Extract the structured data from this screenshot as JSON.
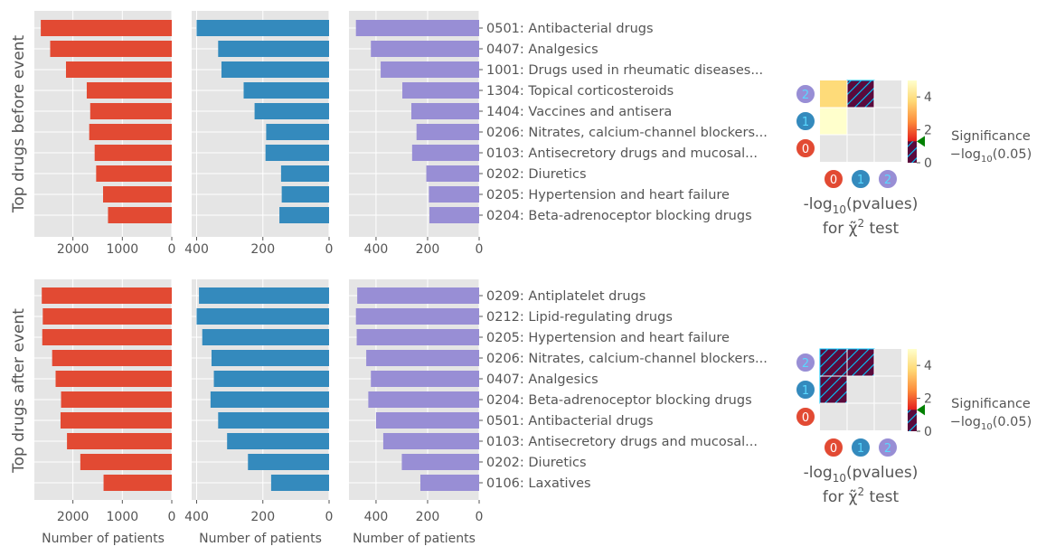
{
  "colors": {
    "series": [
      "#e24a33",
      "#348abd",
      "#988ed5"
    ],
    "panel_bg": "#e5e5e5",
    "grid": "#ffffff",
    "text": "#555555",
    "marker_edge": "#ffffff",
    "marker_label": [
      "#ffffff",
      "#5ad8ff",
      "#5ad8ff"
    ],
    "sig_marker": "#008000",
    "hatch_bg": "#5a0a3c",
    "hatch_line": "#00c8ff"
  },
  "chart_data": [
    {
      "type": "bar",
      "orientation": "horizontal",
      "ylabel": "Top drugs before event",
      "categories": [
        "0501: Antibacterial drugs",
        "0407: Analgesics",
        "1001: Drugs used in rheumatic diseases...",
        "1304: Topical corticosteroids",
        "1404: Vaccines and antisera",
        "0206: Nitrates, calcium-channel blockers...",
        "0103: Antisecretory drugs and mucosal...",
        "0202: Diuretics",
        "0205: Hypertension and heart failure",
        "0204: Beta-adrenoceptor blocking drugs"
      ],
      "series": [
        {
          "values": [
            2650,
            2460,
            2140,
            1720,
            1650,
            1670,
            1560,
            1530,
            1390,
            1290
          ],
          "xlim": [
            0,
            2780
          ],
          "xticks": [
            2000,
            1000,
            0
          ],
          "xlabel": ""
        },
        {
          "values": [
            400,
            335,
            325,
            258,
            225,
            190,
            192,
            145,
            143,
            150
          ],
          "xlim": [
            0,
            415
          ],
          "xticks": [
            400,
            200,
            0
          ],
          "xlabel": ""
        },
        {
          "values": [
            478,
            420,
            382,
            298,
            263,
            243,
            260,
            205,
            195,
            193
          ],
          "xlim": [
            0,
            505
          ],
          "xticks": [
            400,
            200,
            0
          ],
          "xlabel": ""
        }
      ],
      "heatmap": {
        "ticks": [
          "0",
          "1",
          "2"
        ],
        "cells": [
          {
            "row": 2,
            "col": 0,
            "value": 3.8
          },
          {
            "row": 2,
            "col": 1,
            "value": 0,
            "significant": true
          },
          {
            "row": 2,
            "col": 2,
            "value": null
          },
          {
            "row": 1,
            "col": 0,
            "value": 5.0
          },
          {
            "row": 1,
            "col": 1,
            "value": null
          },
          {
            "row": 1,
            "col": 2,
            "value": null
          },
          {
            "row": 0,
            "col": 0,
            "value": null
          },
          {
            "row": 0,
            "col": 1,
            "value": null
          },
          {
            "row": 0,
            "col": 2,
            "value": null
          }
        ],
        "xlabel_line1": "-log10(pvalues)",
        "xlabel_line2": "for χ̃2 test",
        "colorbar": {
          "ticks": [
            "0",
            "2",
            "4"
          ],
          "vmin": 0,
          "vmax": 5,
          "sig_value": 1.3
        },
        "sig_label_line1": "Significance",
        "sig_label_line2": "−log10(0.05)"
      }
    },
    {
      "type": "bar",
      "orientation": "horizontal",
      "ylabel": "Top drugs after event",
      "categories": [
        "0209: Antiplatelet drugs",
        "0212: Lipid-regulating drugs",
        "0205: Hypertension and heart failure",
        "0206: Nitrates, calcium-channel blockers...",
        "0407: Analgesics",
        "0204: Beta-adrenoceptor blocking drugs",
        "0501: Antibacterial drugs",
        "0103: Antisecretory drugs and mucosal...",
        "0202: Diuretics",
        "0106: Laxatives"
      ],
      "series": [
        {
          "values": [
            2630,
            2610,
            2620,
            2420,
            2350,
            2240,
            2250,
            2120,
            1850,
            1380
          ],
          "xlim": [
            0,
            2780
          ],
          "xticks": [
            2000,
            1000,
            0
          ],
          "xlabel": "Number of patients"
        },
        {
          "values": [
            393,
            400,
            383,
            355,
            348,
            358,
            335,
            308,
            245,
            175
          ],
          "xlim": [
            0,
            415
          ],
          "xticks": [
            400,
            200,
            0
          ],
          "xlabel": "Number of patients"
        },
        {
          "values": [
            473,
            478,
            475,
            438,
            420,
            430,
            400,
            372,
            300,
            228
          ],
          "xlim": [
            0,
            505
          ],
          "xticks": [
            400,
            200,
            0
          ],
          "xlabel": "Number of patients"
        }
      ],
      "heatmap": {
        "ticks": [
          "0",
          "1",
          "2"
        ],
        "cells": [
          {
            "row": 2,
            "col": 0,
            "value": 0,
            "significant": true
          },
          {
            "row": 2,
            "col": 1,
            "value": 0,
            "significant": true
          },
          {
            "row": 2,
            "col": 2,
            "value": null
          },
          {
            "row": 1,
            "col": 0,
            "value": 0,
            "significant": true
          },
          {
            "row": 1,
            "col": 1,
            "value": null
          },
          {
            "row": 1,
            "col": 2,
            "value": null
          },
          {
            "row": 0,
            "col": 0,
            "value": null
          },
          {
            "row": 0,
            "col": 1,
            "value": null
          },
          {
            "row": 0,
            "col": 2,
            "value": null
          }
        ],
        "xlabel_line1": "-log10(pvalues)",
        "xlabel_line2": "for χ̃2 test",
        "colorbar": {
          "ticks": [
            "0",
            "2",
            "4"
          ],
          "vmin": 0,
          "vmax": 5,
          "sig_value": 1.3
        },
        "sig_label_line1": "Significance",
        "sig_label_line2": "−log10(0.05)"
      }
    }
  ]
}
